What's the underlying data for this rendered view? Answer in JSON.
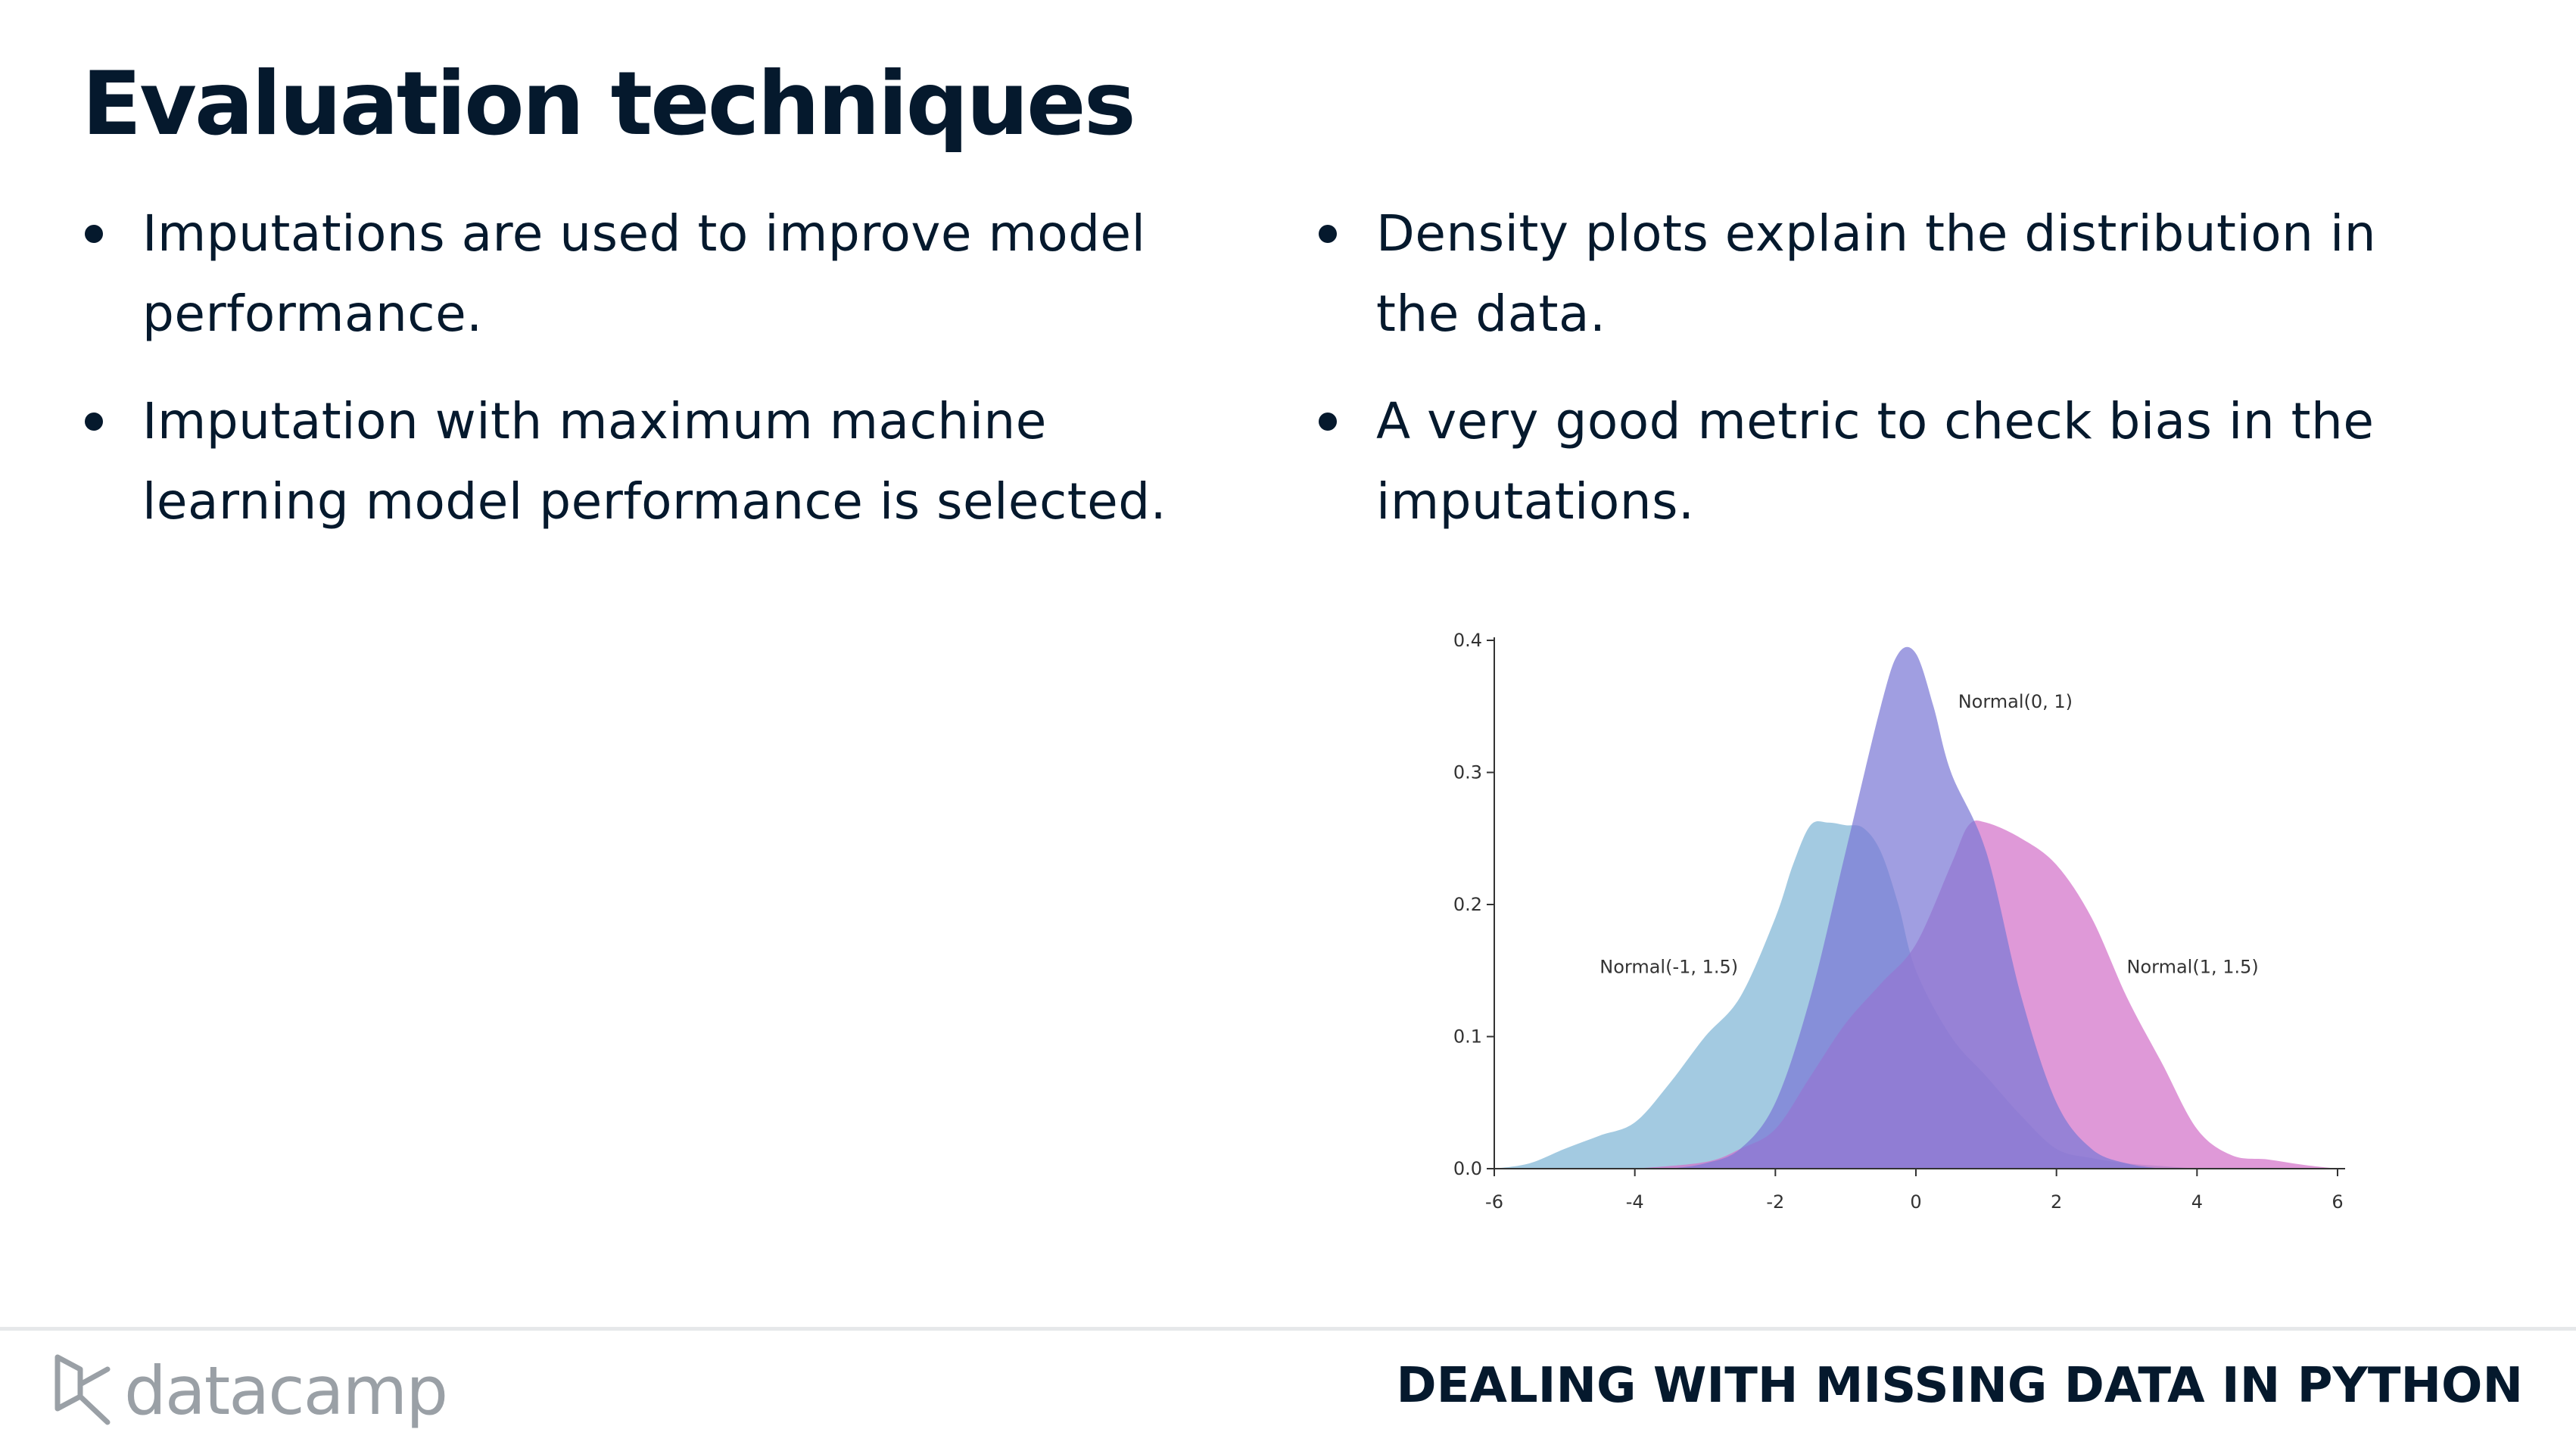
{
  "title": "Evaluation techniques",
  "left_bullets": [
    "Imputations are used to improve model performance.",
    "Imputation with maximum machine learning model performance is selected."
  ],
  "right_bullets": [
    "Density plots explain the distribution in the data.",
    "A very good metric to check bias in the imputations."
  ],
  "footer": {
    "logo_text": "datacamp",
    "course_title": "DEALING WITH MISSING DATA IN PYTHON"
  },
  "chart_data": {
    "type": "area",
    "title": "",
    "xlabel": "",
    "ylabel": "",
    "xlim": [
      -6,
      6
    ],
    "ylim": [
      0,
      0.4
    ],
    "xticks": [
      "-6",
      "-4",
      "-2",
      "0",
      "2",
      "4",
      "6"
    ],
    "yticks": [
      "0.0",
      "0.1",
      "0.2",
      "0.3",
      "0.4"
    ],
    "grid": false,
    "series": [
      {
        "name": "Normal(-1, 1.5)",
        "color": "#7fb5d5",
        "x": [
          -6,
          -5.5,
          -5,
          -4.5,
          -4,
          -3.5,
          -3,
          -2.5,
          -2,
          -1.75,
          -1.5,
          -1.25,
          -1,
          -0.75,
          -0.5,
          -0.25,
          0,
          0.5,
          1,
          1.5,
          2,
          2.5,
          3,
          3.5,
          4
        ],
        "y": [
          0,
          0.004,
          0.015,
          0.025,
          0.035,
          0.065,
          0.1,
          0.13,
          0.19,
          0.23,
          0.26,
          0.262,
          0.26,
          0.258,
          0.24,
          0.2,
          0.15,
          0.1,
          0.07,
          0.04,
          0.015,
          0.008,
          0.004,
          0.002,
          0
        ]
      },
      {
        "name": "Normal(1, 1.5)",
        "color": "#d372c9",
        "x": [
          -4,
          -3,
          -2.5,
          -2,
          -1.5,
          -1,
          -0.5,
          0,
          0.5,
          0.75,
          1,
          1.5,
          2,
          2.5,
          3,
          3.5,
          4,
          4.5,
          5,
          5.5,
          6
        ],
        "y": [
          0,
          0.005,
          0.015,
          0.03,
          0.07,
          0.11,
          0.14,
          0.17,
          0.23,
          0.26,
          0.262,
          0.25,
          0.23,
          0.19,
          0.13,
          0.08,
          0.03,
          0.01,
          0.007,
          0.003,
          0
        ]
      },
      {
        "name": "Normal(0, 1)",
        "color": "#7b78d6",
        "x": [
          -3.5,
          -3,
          -2.5,
          -2,
          -1.5,
          -1,
          -0.5,
          -0.25,
          0,
          0.25,
          0.5,
          1,
          1.5,
          2,
          2.5,
          3,
          3.5
        ],
        "y": [
          0,
          0.004,
          0.015,
          0.05,
          0.13,
          0.24,
          0.35,
          0.39,
          0.39,
          0.35,
          0.3,
          0.24,
          0.13,
          0.05,
          0.015,
          0.004,
          0
        ]
      }
    ]
  }
}
